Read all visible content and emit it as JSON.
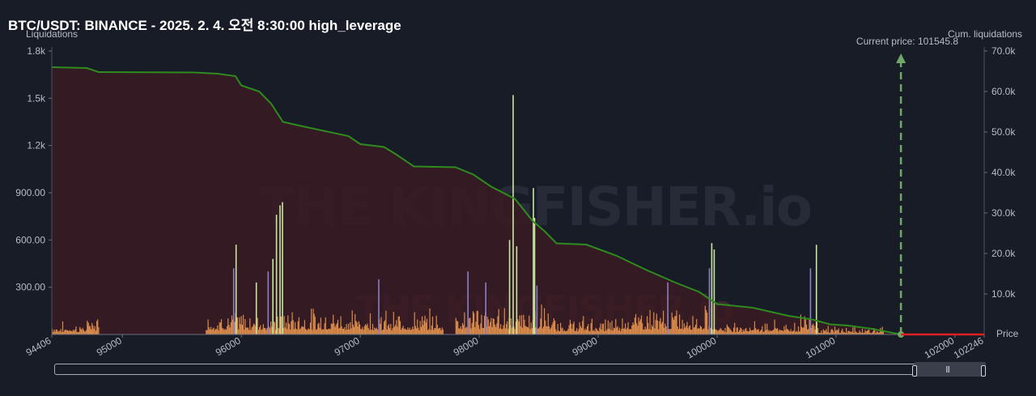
{
  "title": "BTC/USDT: BINANCE - 2025. 2. 4. 오전 8:30:00 high_leverage",
  "current_price_label": "Current price: 101545.8",
  "watermark": "THE KINGFISHER.io",
  "colors": {
    "background": "#181c27",
    "area_fill": "#3a1a22",
    "cum_line": "#2e8b1e",
    "bars": "#d98a4a",
    "bars_high": "#c8e6a0",
    "bars_purple": "#8a7fc8",
    "current_price_marker": "#6fa86a",
    "above_price_line": "#e02020"
  },
  "chart_data": {
    "type": "bar",
    "x_axis": {
      "label": "Price",
      "range": [
        94406,
        102246
      ],
      "ticks": [
        "94406",
        "95000",
        "96000",
        "97000",
        "98000",
        "99000",
        "100000",
        "101000",
        "102000",
        "102246"
      ]
    },
    "y_axis_left": {
      "label": "Liquidations",
      "range": [
        0,
        1800
      ],
      "ticks": [
        "300.00",
        "600.00",
        "900.00",
        "1.2k",
        "1.5k",
        "1.8k"
      ]
    },
    "y_axis_right": {
      "label": "Cum. liquidations",
      "range": [
        0,
        70000
      ],
      "ticks": [
        "10.0k",
        "20.0k",
        "30.0k",
        "40.0k",
        "50.0k",
        "60.0k",
        "70.0k"
      ]
    },
    "current_price": 101545.8,
    "cumulative_series": {
      "name": "Cum. liquidations",
      "points": [
        [
          94406,
          66000
        ],
        [
          94700,
          65800
        ],
        [
          94800,
          64800
        ],
        [
          95600,
          64700
        ],
        [
          95800,
          64400
        ],
        [
          95950,
          63800
        ],
        [
          96000,
          61500
        ],
        [
          96150,
          60000
        ],
        [
          96250,
          57000
        ],
        [
          96350,
          52500
        ],
        [
          96500,
          51500
        ],
        [
          96900,
          49000
        ],
        [
          97000,
          47000
        ],
        [
          97200,
          46300
        ],
        [
          97300,
          44500
        ],
        [
          97450,
          41500
        ],
        [
          97800,
          41300
        ],
        [
          97950,
          39500
        ],
        [
          98100,
          36500
        ],
        [
          98300,
          33500
        ],
        [
          98450,
          28000
        ],
        [
          98550,
          25500
        ],
        [
          98650,
          22500
        ],
        [
          98900,
          22200
        ],
        [
          99150,
          19500
        ],
        [
          99400,
          16000
        ],
        [
          99650,
          12800
        ],
        [
          99850,
          10500
        ],
        [
          100000,
          7500
        ],
        [
          100300,
          6600
        ],
        [
          100600,
          4600
        ],
        [
          100800,
          3700
        ],
        [
          100950,
          2500
        ],
        [
          101100,
          2200
        ],
        [
          101300,
          1400
        ],
        [
          101545.8,
          0
        ]
      ]
    },
    "spikes": [
      {
        "x": 95950,
        "y": 570,
        "kind": "high"
      },
      {
        "x": 95930,
        "y": 420,
        "kind": "purple"
      },
      {
        "x": 96220,
        "y": 400,
        "kind": "purple"
      },
      {
        "x": 96260,
        "y": 480,
        "kind": "high"
      },
      {
        "x": 96290,
        "y": 760,
        "kind": "high"
      },
      {
        "x": 96320,
        "y": 820,
        "kind": "high"
      },
      {
        "x": 96340,
        "y": 840,
        "kind": "high"
      },
      {
        "x": 96120,
        "y": 330,
        "kind": "high"
      },
      {
        "x": 97150,
        "y": 350,
        "kind": "purple"
      },
      {
        "x": 97900,
        "y": 400,
        "kind": "purple"
      },
      {
        "x": 98050,
        "y": 330,
        "kind": "purple"
      },
      {
        "x": 98250,
        "y": 600,
        "kind": "high"
      },
      {
        "x": 98280,
        "y": 1520,
        "kind": "high"
      },
      {
        "x": 98310,
        "y": 560,
        "kind": "high"
      },
      {
        "x": 98450,
        "y": 930,
        "kind": "high"
      },
      {
        "x": 98460,
        "y": 740,
        "kind": "high"
      },
      {
        "x": 98480,
        "y": 310,
        "kind": "purple"
      },
      {
        "x": 99950,
        "y": 580,
        "kind": "high"
      },
      {
        "x": 99970,
        "y": 540,
        "kind": "high"
      },
      {
        "x": 99930,
        "y": 420,
        "kind": "purple"
      },
      {
        "x": 99580,
        "y": 330,
        "kind": "purple"
      },
      {
        "x": 100780,
        "y": 420,
        "kind": "purple"
      },
      {
        "x": 100830,
        "y": 570,
        "kind": "high"
      }
    ],
    "clusters": [
      {
        "from": 94406,
        "to": 94750,
        "peak": 90
      },
      {
        "from": 94700,
        "to": 94800,
        "peak": 150
      },
      {
        "from": 95700,
        "to": 96400,
        "peak": 180
      },
      {
        "from": 96400,
        "to": 97100,
        "peak": 190
      },
      {
        "from": 97100,
        "to": 97700,
        "peak": 170
      },
      {
        "from": 97800,
        "to": 98600,
        "peak": 220
      },
      {
        "from": 98600,
        "to": 99200,
        "peak": 130
      },
      {
        "from": 99200,
        "to": 100000,
        "peak": 200
      },
      {
        "from": 100000,
        "to": 100700,
        "peak": 100
      },
      {
        "from": 100700,
        "to": 100850,
        "peak": 200
      },
      {
        "from": 100850,
        "to": 101400,
        "peak": 60
      }
    ]
  }
}
